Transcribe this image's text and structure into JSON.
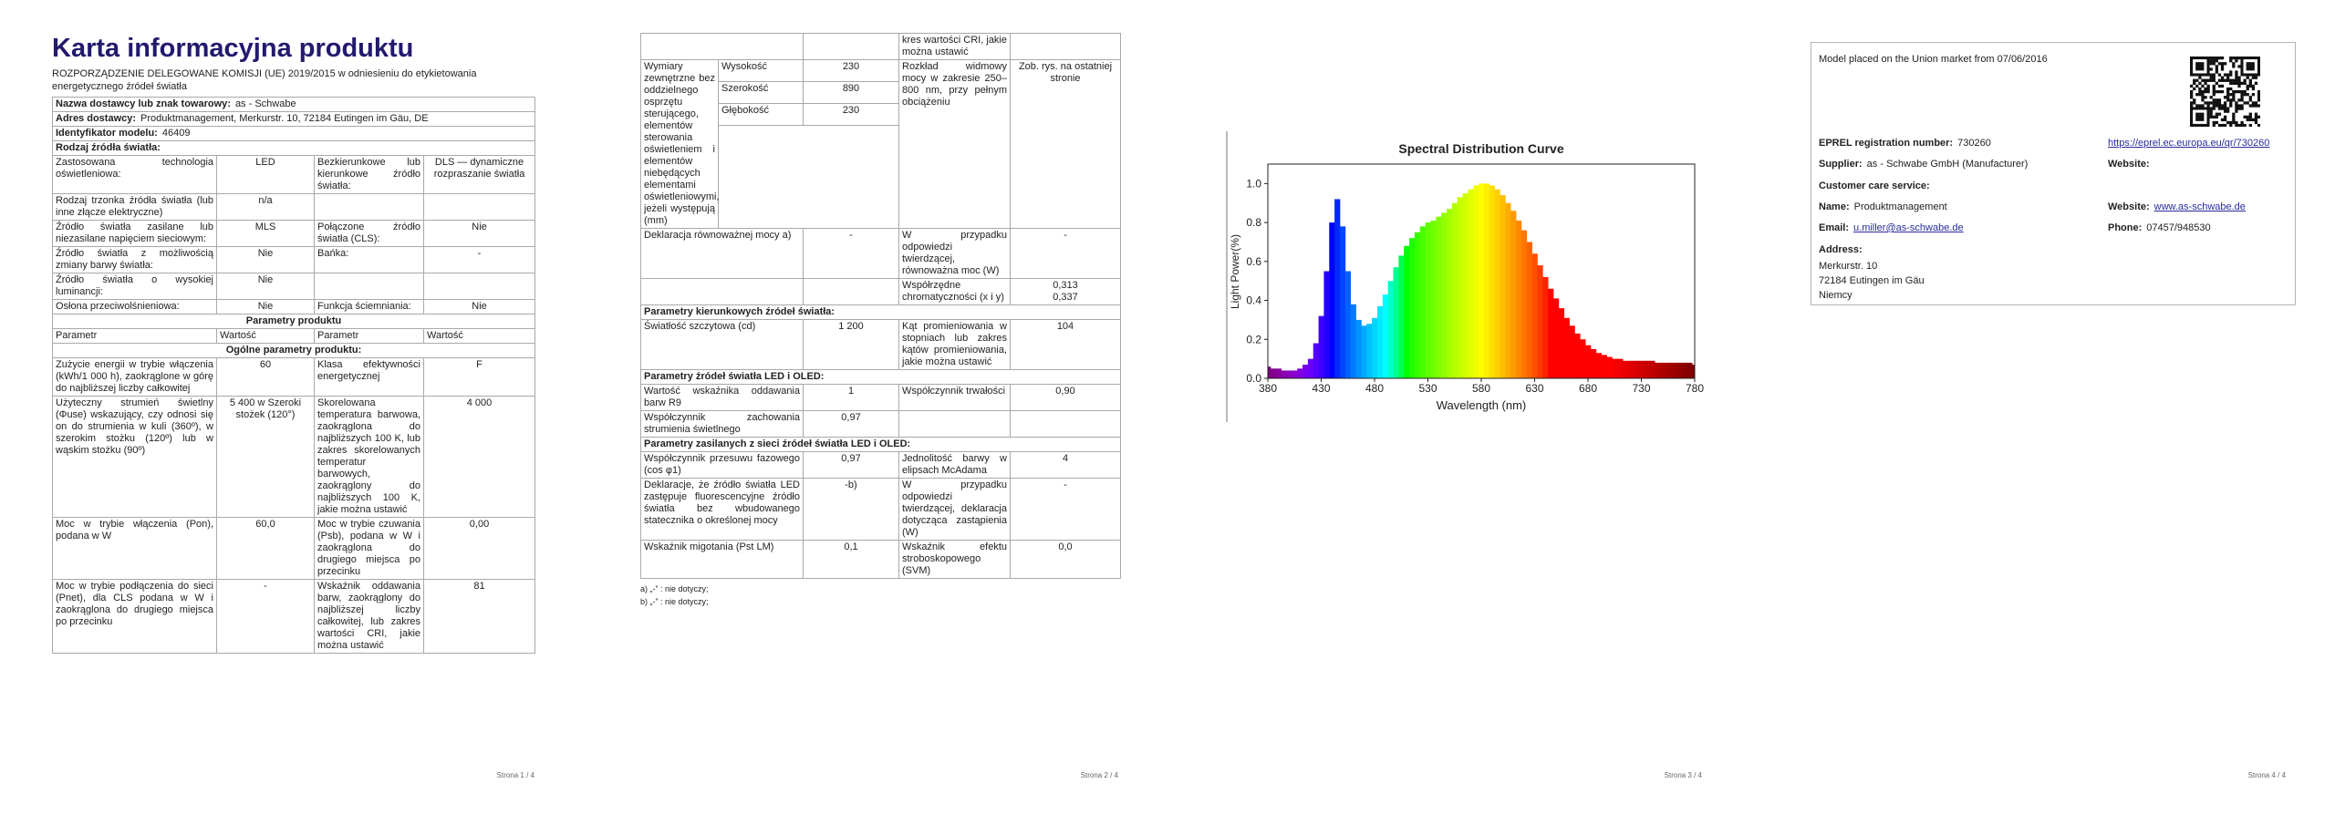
{
  "page1": {
    "title": "Karta informacyjna produktu",
    "regulation": "ROZPORZĄDZENIE DELEGOWANE KOMISJI (UE) 2019/2015 w odniesieniu do etykietowania energetycznego źródeł światła",
    "info": [
      {
        "label": "Nazwa dostawcy lub znak towarowy:",
        "value": "as - Schwabe"
      },
      {
        "label": "Adres dostawcy:",
        "value": "Produktmanagement, Merkurstr. 10, 72184 Eutingen im Gäu, DE"
      },
      {
        "label": "Identyfikator modelu:",
        "value": "46409"
      }
    ],
    "light_source_heading": "Rodzaj źródła światła:",
    "light_source_rows": [
      [
        "Zastosowana technologia oświetleniowa:",
        "LED",
        "Bezkierunkowe lub kierunkowe źródło światła:",
        "DLS — dynamiczne rozpraszanie światła"
      ],
      [
        "Rodzaj trzonka źródła światła (lub inne złącze elektryczne)",
        "n/a",
        null,
        null
      ],
      [
        "Źródło światła zasilane lub niezasilane napięciem sieciowym:",
        "MLS",
        "Połączone źródło światła (CLS):",
        "Nie"
      ],
      [
        "Źródło światła z możliwością zmiany barwy światła:",
        "Nie",
        "Bańka:",
        "-"
      ],
      [
        "Źródło światła o wysokiej luminancji:",
        "Nie",
        null,
        null
      ],
      [
        "Osłona przeciwolśnieniowa:",
        "Nie",
        "Funkcja ściemniania:",
        "Nie"
      ]
    ],
    "params_heading": "Parametry produktu",
    "column_headers": [
      "Parametr",
      "Wartość",
      "Parametr",
      "Wartość"
    ],
    "general_heading": "Ogólne parametry produktu:",
    "general_rows": [
      [
        "Zużycie energii w trybie włączenia (kWh/1 000 h), zaokrąglone w górę do najbliższej liczby całkowitej",
        "60",
        "Klasa efektywności energetycznej",
        "F"
      ],
      [
        "Użyteczny strumień świetlny (Φuse) wskazujący, czy odnosi się on do strumienia w kuli (360º), w szerokim stożku (120º) lub w wąskim stożku (90º)",
        "5 400 w Szeroki stożek (120°)",
        "Skorelowana temperatura barwowa, zaokrąglona do najbliższych 100 K, lub zakres skorelowanych temperatur barwowych, zaokrąglony do najbliższych 100 K, jakie można ustawić",
        "4 000"
      ],
      [
        "Moc w trybie włączenia (Pon), podana w W",
        "60,0",
        "Moc w trybie czuwania (Psb), podana w W i zaokrąglona do drugiego miejsca po przecinku",
        "0,00"
      ],
      [
        "Moc w trybie podłączenia do sieci (Pnet), dla CLS podana w W i zaokrąglona do drugiego miejsca po przecinku",
        "-",
        "Wskaźnik oddawania barw, zaokrąglony do najbliższej liczby całkowitej, lub zakres wartości CRI, jakie można ustawić",
        "81"
      ]
    ],
    "footer": "Strona 1 / 4"
  },
  "page2": {
    "blocks": [
      {
        "cells": [
          null,
          null,
          "kres wartości CRI, jakie można ustawić",
          null
        ]
      },
      {
        "label": "Wymiary zewnętrzne bez oddzielnego osprzętu sterującego, elementów sterowania oświetleniem i elementów niebędących elementami oświetleniowymi, jeżeli występują (mm)",
        "dimensions": [
          [
            "Wysokość",
            "230"
          ],
          [
            "Szerokość",
            "890"
          ],
          [
            "Głębokość",
            "230"
          ]
        ],
        "right": [
          "Rozkład widmowy mocy w zakresie 250–800 nm, przy pełnym obciążeniu",
          "Zob. rys. na ostatniej stronie"
        ]
      },
      {
        "cells": [
          "Deklaracja równoważnej mocy a)",
          "-",
          "W przypadku odpowiedzi twierdzącej, równoważna moc (W)",
          "-"
        ]
      },
      {
        "cells": [
          null,
          null,
          "Współrzędne chromatyczności (x i y)",
          "0,313\n0,337"
        ]
      },
      {
        "heading": "Parametry kierunkowych źródeł światła:"
      },
      {
        "cells": [
          "Światłość szczytowa (cd)",
          "1 200",
          "Kąt promieniowania w stopniach lub zakres kątów promieniowania, jakie można ustawić",
          "104"
        ]
      },
      {
        "heading": "Parametry źródeł światła LED i OLED:"
      },
      {
        "cells": [
          "Wartość wskaźnika oddawania barw R9",
          "1",
          "Współczynnik trwałości",
          "0,90"
        ]
      },
      {
        "cells": [
          "Współczynnik zachowania strumienia świetlnego",
          "0,97",
          null,
          null
        ]
      },
      {
        "heading": "Parametry zasilanych z sieci źródeł światła LED i OLED:"
      },
      {
        "cells": [
          "Współczynnik przesuwu fazowego (cos φ1)",
          "0,97",
          "Jednolitość barwy w elipsach McAdama",
          "4"
        ]
      },
      {
        "cells": [
          "Deklaracje, że źródło światła LED zastępuje fluorescencyjne źródło światła bez wbudowanego statecznika o określonej mocy",
          "-b)",
          "W przypadku odpowiedzi twierdzącej, deklaracja dotycząca zastąpienia (W)",
          "-"
        ]
      },
      {
        "cells": [
          "Wskaźnik migotania (Pst LM)",
          "0,1",
          "Wskaźnik efektu stroboskopowego (SVM)",
          "0,0"
        ]
      }
    ],
    "footnotes": [
      "a) „-” : nie dotyczy;",
      "b) „-” : nie dotyczy;"
    ],
    "footer": "Strona 2 / 4"
  },
  "chart_data": {
    "type": "area",
    "title": "Spectral Distribution Curve",
    "x_label": "Wavelength (nm)",
    "y_label": "Light Power(%)",
    "x": [
      380,
      385,
      390,
      395,
      400,
      405,
      410,
      415,
      420,
      425,
      430,
      435,
      440,
      445,
      450,
      455,
      460,
      465,
      470,
      475,
      480,
      485,
      490,
      495,
      500,
      505,
      510,
      515,
      520,
      525,
      530,
      535,
      540,
      545,
      550,
      555,
      560,
      565,
      570,
      575,
      580,
      585,
      590,
      595,
      600,
      605,
      610,
      615,
      620,
      625,
      630,
      635,
      640,
      645,
      650,
      655,
      660,
      665,
      670,
      675,
      680,
      685,
      690,
      695,
      700,
      705,
      710,
      715,
      720,
      725,
      730,
      735,
      740,
      745,
      750,
      755,
      760,
      765,
      770,
      775,
      780
    ],
    "values": [
      0.06,
      0.05,
      0.05,
      0.04,
      0.04,
      0.04,
      0.05,
      0.07,
      0.1,
      0.18,
      0.32,
      0.55,
      0.8,
      0.92,
      0.78,
      0.55,
      0.38,
      0.3,
      0.27,
      0.28,
      0.31,
      0.37,
      0.43,
      0.5,
      0.57,
      0.63,
      0.68,
      0.72,
      0.75,
      0.78,
      0.8,
      0.81,
      0.83,
      0.85,
      0.87,
      0.9,
      0.93,
      0.95,
      0.97,
      0.99,
      1.0,
      1.0,
      0.99,
      0.97,
      0.94,
      0.9,
      0.86,
      0.81,
      0.76,
      0.7,
      0.64,
      0.58,
      0.52,
      0.46,
      0.41,
      0.36,
      0.31,
      0.27,
      0.23,
      0.2,
      0.17,
      0.15,
      0.13,
      0.12,
      0.11,
      0.1,
      0.1,
      0.09,
      0.09,
      0.09,
      0.09,
      0.09,
      0.09,
      0.08,
      0.08,
      0.08,
      0.08,
      0.08,
      0.08,
      0.08,
      0.07
    ],
    "xlim": [
      380,
      780
    ],
    "xticks": [
      380,
      430,
      480,
      530,
      580,
      630,
      680,
      730,
      780
    ],
    "ylim": [
      0,
      1.1
    ],
    "yticks": [
      {
        "value": 0,
        "label": "0.0"
      },
      0.2,
      0.4,
      0.6,
      0.8,
      {
        "value": 1,
        "label": "1.0"
      }
    ],
    "footer": "Strona 3 / 4"
  },
  "page4": {
    "market": "Model placed on the Union market from 07/06/2016",
    "eprel": {
      "label": "EPREL registration number:",
      "value": "730260",
      "link": "https://eprel.ec.europa.eu/qr/730260"
    },
    "supplier": {
      "label": "Supplier:",
      "value": "as - Schwabe GmbH (Manufacturer)"
    },
    "supplier_website_label": "Website:",
    "customer_care": "Customer care service:",
    "name": {
      "label": "Name:",
      "value": "Produktmanagement"
    },
    "website": {
      "label": "Website:",
      "value": "www.as-schwabe.de"
    },
    "email": {
      "label": "Email:",
      "value": "u.miller@as-schwabe.de"
    },
    "phone": {
      "label": "Phone:",
      "value": "07457/948530"
    },
    "address": {
      "label": "Address:",
      "lines": [
        "Merkurstr. 10",
        "72184 Eutingen im Gäu",
        "Niemcy"
      ]
    },
    "footer": "Strona 4 / 4"
  }
}
